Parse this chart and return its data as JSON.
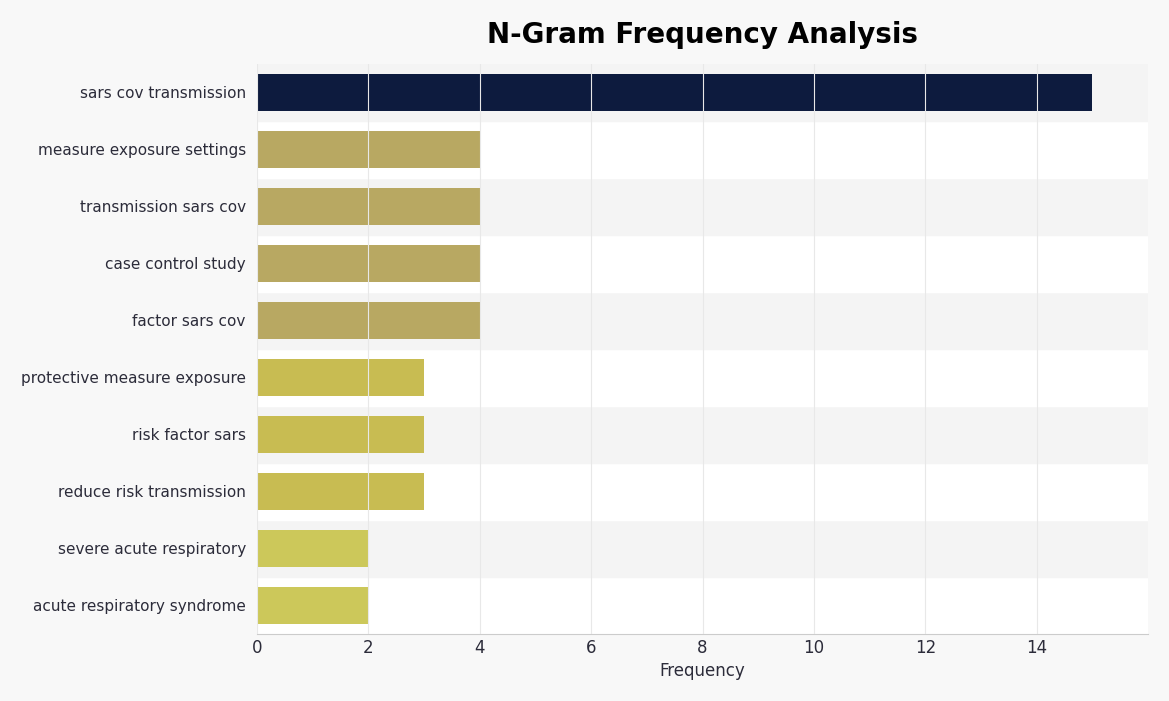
{
  "title": "N-Gram Frequency Analysis",
  "categories": [
    "acute respiratory syndrome",
    "severe acute respiratory",
    "reduce risk transmission",
    "risk factor sars",
    "protective measure exposure",
    "factor sars cov",
    "case control study",
    "transmission sars cov",
    "measure exposure settings",
    "sars cov transmission"
  ],
  "values": [
    2,
    2,
    3,
    3,
    3,
    4,
    4,
    4,
    4,
    15
  ],
  "bar_colors": [
    "#ccc85a",
    "#ccc85a",
    "#c8bc52",
    "#c8bc52",
    "#c8bc52",
    "#b8a862",
    "#b8a862",
    "#b8a862",
    "#b8a862",
    "#0d1b3e"
  ],
  "row_colors": [
    "#ffffff",
    "#f4f4f4",
    "#ffffff",
    "#f4f4f4",
    "#ffffff",
    "#f4f4f4",
    "#ffffff",
    "#f4f4f4",
    "#ffffff",
    "#f4f4f4"
  ],
  "background_color": "#f8f8f8",
  "plot_area_color": "#f8f8f8",
  "xlabel": "Frequency",
  "xlim": [
    0,
    16
  ],
  "xticks": [
    0,
    2,
    4,
    6,
    8,
    10,
    12,
    14
  ],
  "title_fontsize": 20,
  "label_fontsize": 11,
  "tick_fontsize": 12,
  "bar_height": 0.65,
  "text_color": "#2c2c3a",
  "grid_color": "#e8e8e8"
}
